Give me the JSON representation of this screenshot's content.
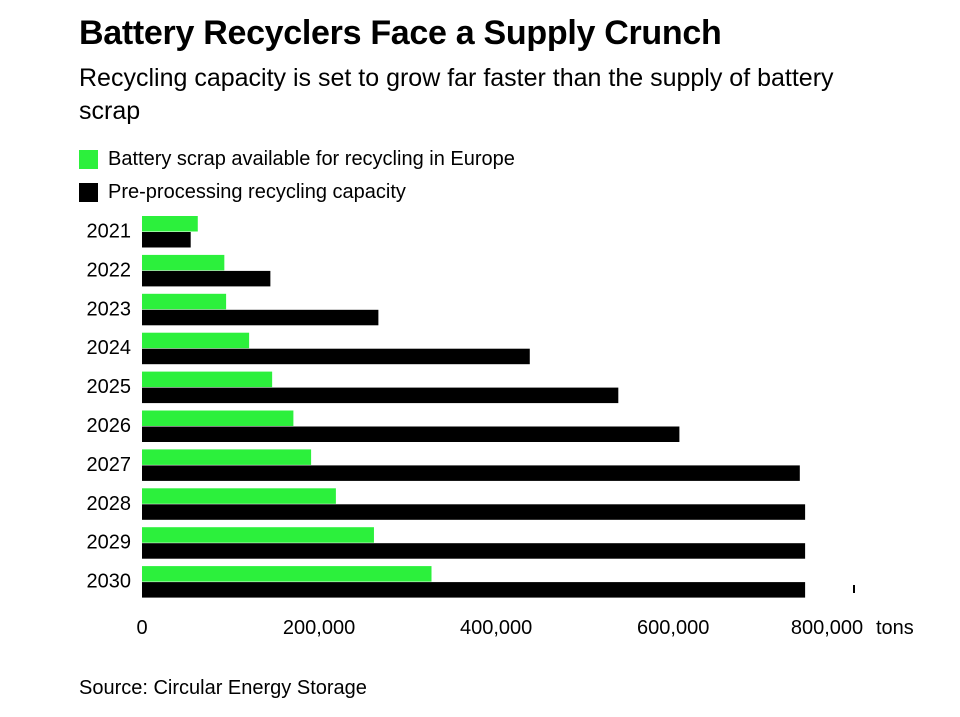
{
  "header": {
    "title": "Battery Recyclers Face a Supply Crunch",
    "subtitle": "Recycling capacity is set to grow far faster than the supply of battery scrap"
  },
  "colors": {
    "scrap": "#2cf03c",
    "capacity": "#000000"
  },
  "chart_data": {
    "type": "bar",
    "orientation": "horizontal",
    "title": "Battery Recyclers Face a Supply Crunch",
    "subtitle": "Recycling capacity is set to grow far faster than the supply of battery scrap",
    "categories": [
      "2021",
      "2022",
      "2023",
      "2024",
      "2025",
      "2026",
      "2027",
      "2028",
      "2029",
      "2030"
    ],
    "series": [
      {
        "name": "Battery scrap available for recycling in Europe",
        "color": "#2cf03c",
        "values": [
          63000,
          93000,
          95000,
          121000,
          147000,
          171000,
          191000,
          219000,
          262000,
          327000
        ]
      },
      {
        "name": "Pre-processing recycling capacity",
        "color": "#000000",
        "values": [
          55000,
          145000,
          267000,
          438000,
          538000,
          607000,
          743000,
          749000,
          749000,
          749000
        ]
      }
    ],
    "xticks": [
      {
        "value": 0,
        "label": "0"
      },
      {
        "value": 200000,
        "label": "200,000"
      },
      {
        "value": 400000,
        "label": "400,000"
      },
      {
        "value": 600000,
        "label": "600,000"
      },
      {
        "value": 800000,
        "label": "800,000"
      }
    ],
    "xunit": "tons",
    "xlim": [
      0,
      800000
    ],
    "legend_position": "top-left",
    "grid": false
  },
  "source": "Source: Circular Energy Storage"
}
